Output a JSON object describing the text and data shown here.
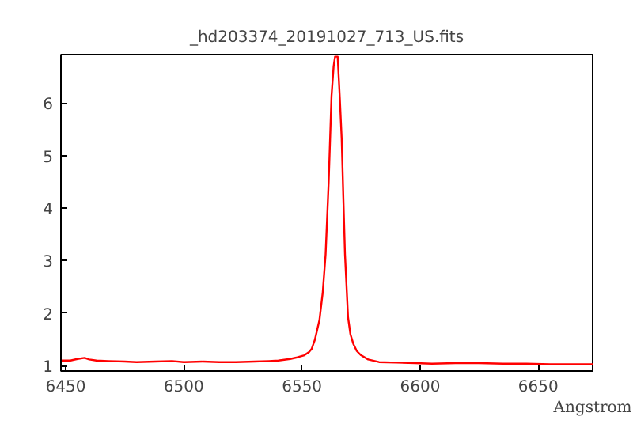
{
  "chart_data": {
    "type": "line",
    "title": "_hd203374_20191027_713_US.fits",
    "xlabel": "Angstrom",
    "x": [
      6448,
      6452,
      6455,
      6458,
      6460,
      6463,
      6468,
      6475,
      6480,
      6488,
      6495,
      6500,
      6508,
      6515,
      6522,
      6530,
      6536,
      6540,
      6545,
      6548,
      6551,
      6553,
      6554.1,
      6555.5,
      6557.4,
      6558.8,
      6560.0,
      6561.3,
      6562.5,
      6563.4,
      6564.0,
      6565.1,
      6566.0,
      6566.8,
      6567.5,
      6568.2,
      6569.5,
      6570.5,
      6571.7,
      6573.2,
      6575,
      6578,
      6582.6,
      6590,
      6598,
      6605,
      6615,
      6625,
      6635,
      6645,
      6655,
      6665,
      6673
    ],
    "series": [
      {
        "color": "#ff0000",
        "values": [
          1.1,
          1.1,
          1.13,
          1.15,
          1.12,
          1.1,
          1.09,
          1.08,
          1.07,
          1.08,
          1.09,
          1.07,
          1.08,
          1.07,
          1.07,
          1.08,
          1.09,
          1.1,
          1.13,
          1.16,
          1.2,
          1.26,
          1.32,
          1.5,
          1.87,
          2.4,
          3.12,
          4.5,
          6.13,
          6.7,
          6.88,
          6.88,
          6.1,
          5.32,
          4.2,
          3.12,
          1.92,
          1.6,
          1.42,
          1.28,
          1.2,
          1.12,
          1.07,
          1.06,
          1.05,
          1.04,
          1.05,
          1.05,
          1.04,
          1.04,
          1.03,
          1.03,
          1.03
        ]
      }
    ],
    "xlim": [
      6448,
      6673
    ],
    "ylim": [
      0.9,
      6.92
    ],
    "xticks": [
      6450,
      6500,
      6550,
      6600,
      6650
    ],
    "yticks": [
      1,
      2,
      3,
      4,
      5,
      6
    ],
    "grid": false,
    "marker": "none",
    "line_style": "solid"
  }
}
